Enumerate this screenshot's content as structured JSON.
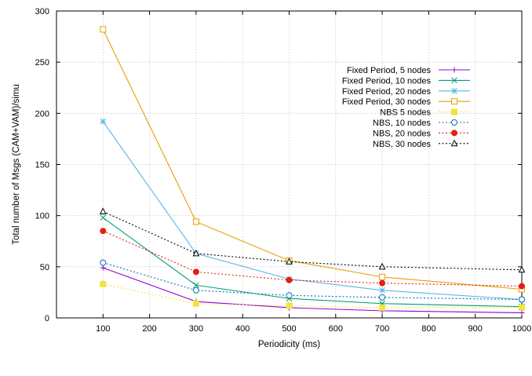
{
  "chart_data": {
    "type": "line",
    "title": "",
    "xlabel": "Periodicity (ms)",
    "ylabel": "Total number of Msgs (CAM+VAM)/simu",
    "xlim": [
      0,
      1000
    ],
    "ylim": [
      0,
      300
    ],
    "xticks": [
      100,
      200,
      300,
      400,
      500,
      600,
      700,
      800,
      900,
      1000
    ],
    "yticks": [
      0,
      50,
      100,
      150,
      200,
      250,
      300
    ],
    "grid": true,
    "legend_position": "top-right",
    "x": [
      100,
      300,
      500,
      700,
      1000
    ],
    "series": [
      {
        "name": "Fixed Period, 5 nodes",
        "values": [
          49,
          16,
          10,
          7,
          5
        ],
        "color": "#9400d3",
        "dash": "solid",
        "marker": "plus"
      },
      {
        "name": "Fixed Period, 10 nodes",
        "values": [
          98,
          32,
          19,
          14,
          11
        ],
        "color": "#009e73",
        "dash": "solid",
        "marker": "cross"
      },
      {
        "name": "Fixed Period, 20 nodes",
        "values": [
          192,
          63,
          38,
          27,
          18
        ],
        "color": "#56b4e9",
        "dash": "solid",
        "marker": "star"
      },
      {
        "name": "Fixed Period, 30 nodes",
        "values": [
          282,
          94,
          56,
          40,
          28
        ],
        "color": "#e69f00",
        "dash": "solid",
        "marker": "square-open"
      },
      {
        "name": "NBS 5 nodes",
        "values": [
          33,
          14,
          12,
          10,
          10
        ],
        "color": "#f0e442",
        "dash": "dotted",
        "marker": "square-filled"
      },
      {
        "name": "NBS, 10 nodes",
        "values": [
          54,
          27,
          22,
          20,
          18
        ],
        "color": "#0072b2",
        "dash": "dotted",
        "marker": "circle-open"
      },
      {
        "name": "NBS, 20 nodes",
        "values": [
          85,
          45,
          37,
          34,
          31
        ],
        "color": "#e51e10",
        "dash": "dotted",
        "marker": "circle-filled"
      },
      {
        "name": "NBS, 30 nodes",
        "values": [
          104,
          63,
          55,
          50,
          47
        ],
        "color": "#000000",
        "dash": "dotted",
        "marker": "triangle-open"
      }
    ]
  }
}
